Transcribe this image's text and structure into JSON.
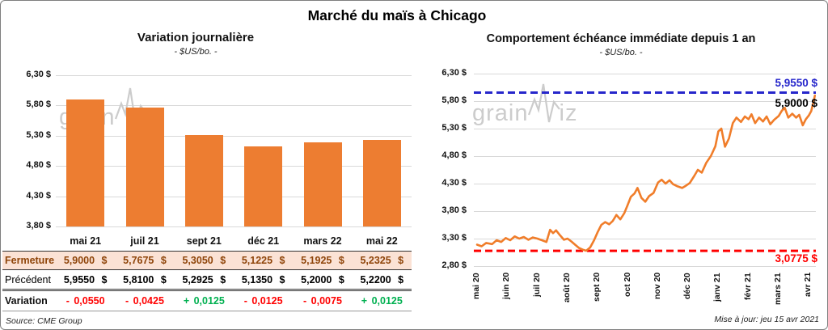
{
  "page": {
    "title": "Marché du maïs à Chicago",
    "source": "Source: CME Group",
    "updated": "Mise à jour: jeu 15 avr 2021",
    "watermark": {
      "grain": "grain",
      "iz": "iz"
    }
  },
  "colors": {
    "orange": "#ED7D31",
    "blue_ref": "#2626CB",
    "red_ref": "#FF0000",
    "peach_row": "#FBE2D5",
    "brown_text": "#8F450A",
    "green_pos": "#00B050",
    "grid": "#D9D9D9"
  },
  "chart_data": [
    {
      "type": "bar",
      "title": "Variation  journalière",
      "subtitle": "- $US/bo. -",
      "categories": [
        "mai 21",
        "juil 21",
        "sept 21",
        "déc 21",
        "mars 22",
        "mai 22"
      ],
      "values": [
        5.9,
        5.7675,
        5.305,
        5.1225,
        5.1925,
        5.2325
      ],
      "ylim": [
        3.8,
        6.3
      ],
      "ytick_labels": [
        "6,30 $",
        "5,80 $",
        "5,30 $",
        "4,80 $",
        "4,30 $",
        "3,80 $"
      ],
      "bar_color": "#ED7D31",
      "grid": true
    },
    {
      "type": "line",
      "title": "Comportement  échéance  immédiate  depuis 1 an",
      "subtitle": "- $US/bo. -",
      "x_ticks": [
        "mai 20",
        "juin 20",
        "juil 20",
        "août 20",
        "sept 20",
        "oct 20",
        "nov 20",
        "déc 20",
        "janv 21",
        "févr 21",
        "mars 21",
        "avr 21"
      ],
      "ylim": [
        2.8,
        6.3
      ],
      "ytick_labels": [
        "6,30 $",
        "5,80 $",
        "5,30 $",
        "4,80 $",
        "4,30 $",
        "3,80 $",
        "3,30 $",
        "2,80 $"
      ],
      "ref_lines": [
        {
          "value": 5.955,
          "label": "5,9550 $",
          "color": "#2626CB",
          "style": "dashed",
          "meaning": "plus haut 1 an"
        },
        {
          "value": 3.0775,
          "label": "3,0775 $",
          "color": "#FF0000",
          "style": "dashed",
          "meaning": "plus bas 1 an"
        }
      ],
      "last_label": {
        "value": 5.9,
        "label": "5,9000 $"
      },
      "series": [
        {
          "name": "échéance immédiate",
          "color": "#F07D2A",
          "x_unit": "mois depuis mai 2020",
          "points": [
            [
              0,
              3.19
            ],
            [
              0.15,
              3.16
            ],
            [
              0.3,
              3.22
            ],
            [
              0.5,
              3.2
            ],
            [
              0.65,
              3.27
            ],
            [
              0.8,
              3.24
            ],
            [
              0.95,
              3.31
            ],
            [
              1.1,
              3.27
            ],
            [
              1.25,
              3.34
            ],
            [
              1.4,
              3.3
            ],
            [
              1.55,
              3.33
            ],
            [
              1.7,
              3.28
            ],
            [
              1.85,
              3.32
            ],
            [
              2.0,
              3.3
            ],
            [
              2.15,
              3.27
            ],
            [
              2.3,
              3.24
            ],
            [
              2.42,
              3.46
            ],
            [
              2.52,
              3.4
            ],
            [
              2.62,
              3.45
            ],
            [
              2.75,
              3.36
            ],
            [
              2.88,
              3.28
            ],
            [
              3.0,
              3.3
            ],
            [
              3.12,
              3.25
            ],
            [
              3.25,
              3.19
            ],
            [
              3.38,
              3.13
            ],
            [
              3.5,
              3.1
            ],
            [
              3.62,
              3.08
            ],
            [
              3.75,
              3.14
            ],
            [
              3.88,
              3.27
            ],
            [
              4.0,
              3.42
            ],
            [
              4.12,
              3.55
            ],
            [
              4.25,
              3.6
            ],
            [
              4.38,
              3.56
            ],
            [
              4.5,
              3.62
            ],
            [
              4.62,
              3.73
            ],
            [
              4.75,
              3.65
            ],
            [
              4.88,
              3.76
            ],
            [
              5.0,
              3.92
            ],
            [
              5.1,
              4.06
            ],
            [
              5.22,
              4.12
            ],
            [
              5.32,
              4.22
            ],
            [
              5.45,
              4.04
            ],
            [
              5.58,
              3.97
            ],
            [
              5.7,
              4.07
            ],
            [
              5.85,
              4.13
            ],
            [
              6.0,
              4.32
            ],
            [
              6.12,
              4.37
            ],
            [
              6.25,
              4.3
            ],
            [
              6.38,
              4.36
            ],
            [
              6.5,
              4.29
            ],
            [
              6.65,
              4.25
            ],
            [
              6.8,
              4.22
            ],
            [
              6.92,
              4.26
            ],
            [
              7.05,
              4.31
            ],
            [
              7.2,
              4.44
            ],
            [
              7.32,
              4.55
            ],
            [
              7.45,
              4.5
            ],
            [
              7.6,
              4.68
            ],
            [
              7.75,
              4.8
            ],
            [
              7.9,
              4.98
            ],
            [
              8.0,
              5.25
            ],
            [
              8.1,
              5.3
            ],
            [
              8.22,
              4.97
            ],
            [
              8.35,
              5.12
            ],
            [
              8.48,
              5.4
            ],
            [
              8.6,
              5.5
            ],
            [
              8.75,
              5.42
            ],
            [
              8.88,
              5.52
            ],
            [
              9.0,
              5.47
            ],
            [
              9.1,
              5.56
            ],
            [
              9.22,
              5.4
            ],
            [
              9.35,
              5.5
            ],
            [
              9.48,
              5.43
            ],
            [
              9.6,
              5.52
            ],
            [
              9.72,
              5.38
            ],
            [
              9.85,
              5.46
            ],
            [
              10.0,
              5.53
            ],
            [
              10.1,
              5.62
            ],
            [
              10.2,
              5.68
            ],
            [
              10.32,
              5.5
            ],
            [
              10.45,
              5.57
            ],
            [
              10.58,
              5.5
            ],
            [
              10.68,
              5.55
            ],
            [
              10.8,
              5.36
            ],
            [
              10.9,
              5.47
            ],
            [
              11.0,
              5.54
            ],
            [
              11.08,
              5.62
            ],
            [
              11.15,
              5.78
            ],
            [
              11.2,
              5.9
            ]
          ]
        }
      ]
    }
  ],
  "table": {
    "columns": [
      "mai 21",
      "juil 21",
      "sept 21",
      "déc 21",
      "mars 22",
      "mai 22"
    ],
    "rows": [
      {
        "label": "Fermeture",
        "values": [
          "5,9000 $",
          "5,7675 $",
          "5,3050 $",
          "5,1225 $",
          "5,1925 $",
          "5,2325 $"
        ]
      },
      {
        "label": "Précédent",
        "values": [
          "5,9550 $",
          "5,8100 $",
          "5,2925 $",
          "5,1350 $",
          "5,2000 $",
          "5,2200 $"
        ]
      },
      {
        "label": "Variation",
        "values": [
          "- 0,0550",
          "- 0,0425",
          "+ 0,0125",
          "- 0,0125",
          "- 0,0075",
          "+ 0,0125"
        ]
      }
    ]
  }
}
